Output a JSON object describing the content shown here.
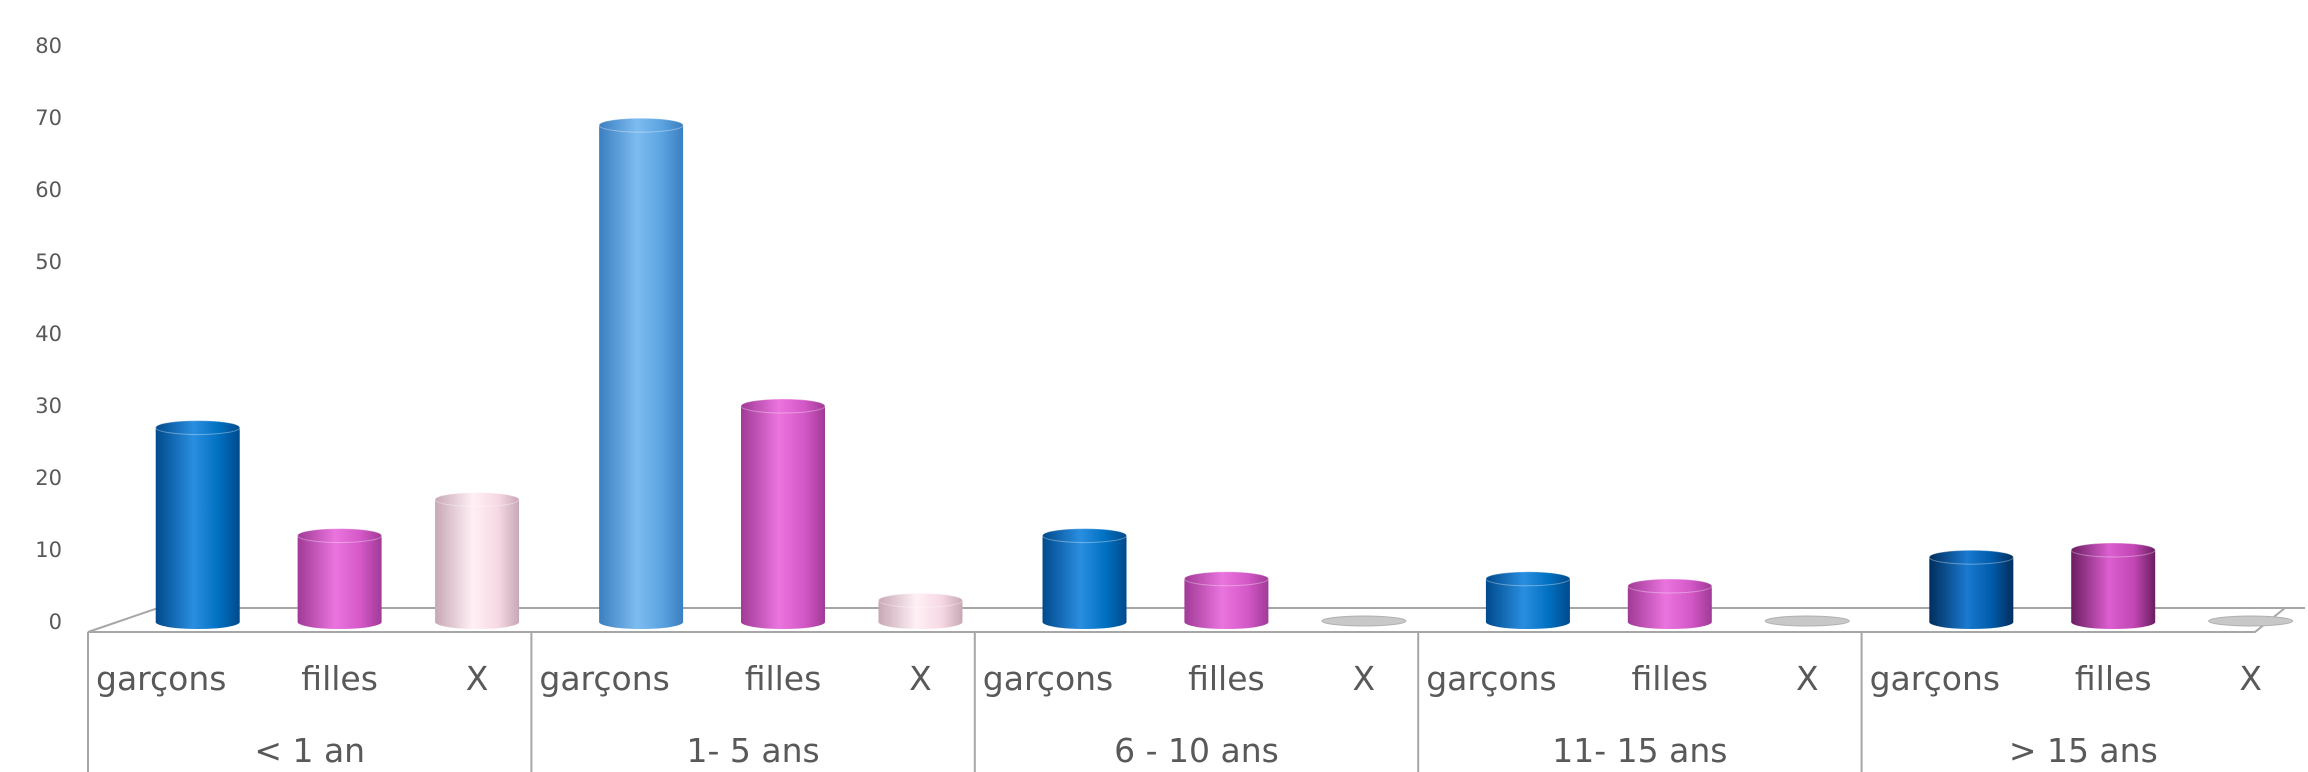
{
  "chart_data": {
    "type": "bar",
    "style": "3d-cylinder",
    "groups": [
      "< 1 an",
      "1- 5 ans",
      "6 - 10 ans",
      "11- 15 ans",
      "> 15 ans"
    ],
    "subcategories": [
      "garçons",
      "filles",
      "X"
    ],
    "values": [
      [
        27,
        12,
        17
      ],
      [
        69,
        30,
        3
      ],
      [
        12,
        6,
        0
      ],
      [
        6,
        5,
        0
      ],
      [
        9,
        10,
        0
      ]
    ],
    "ylim": [
      0,
      80
    ],
    "yticks": [
      0,
      10,
      20,
      30,
      40,
      50,
      60,
      70,
      80
    ],
    "grid": false,
    "legend": "none",
    "colors": {
      "garçons": "#0070c0",
      "filles": "#d458c8",
      "X": "#f6d8e4",
      "highlight_bar": "#5ba3e0",
      "dark_blue": "#004a8c",
      "dark_pink": "#9a2e8a",
      "axis": "#a6a6a6",
      "text": "#595959"
    }
  }
}
